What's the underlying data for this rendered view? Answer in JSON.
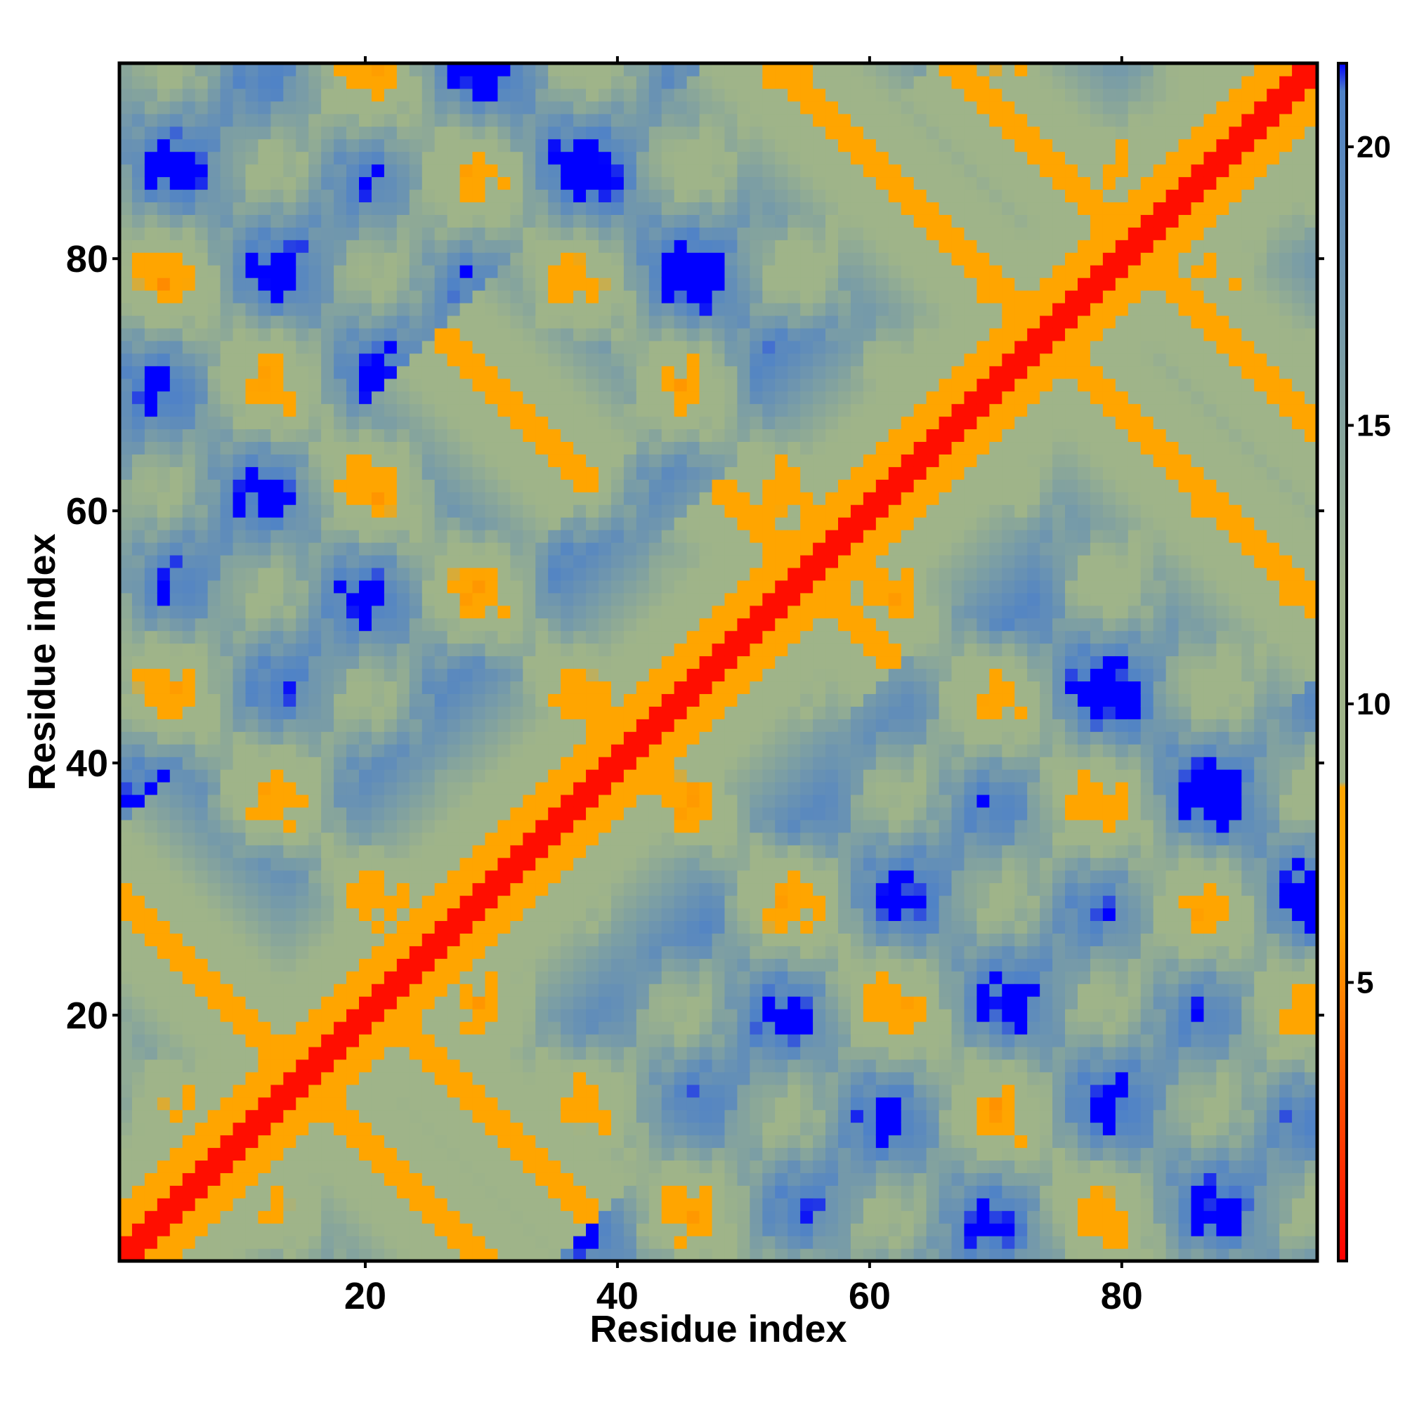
{
  "chart_data": {
    "type": "heatmap",
    "title": "",
    "xlabel": "Residue index",
    "ylabel": "Residue index",
    "n_residues": 95,
    "xlim": [
      0.5,
      95.5
    ],
    "ylim": [
      0.5,
      95.5
    ],
    "x_ticks": [
      20,
      40,
      60,
      80
    ],
    "y_ticks": [
      20,
      40,
      60,
      80
    ],
    "x_tick_labels": [
      "20",
      "40",
      "60",
      "80"
    ],
    "y_tick_labels": [
      "20",
      "40",
      "60",
      "80"
    ],
    "value_description": "pairwise residue distance; diagonal ~0, off-diagonal contacts low, far pairs saturated (>21)",
    "contact_bands": [
      {
        "type": "diagonal",
        "offset": 0
      },
      {
        "type": "anti",
        "sum": 30,
        "from": 0,
        "to": 30
      },
      {
        "type": "anti",
        "sum": 42,
        "from": 23,
        "to": 36
      },
      {
        "type": "anti",
        "sum": 110,
        "from": 50,
        "to": 60
      },
      {
        "type": "anti",
        "sum": 100,
        "from": 28,
        "to": 36
      },
      {
        "type": "anti",
        "sum": 148,
        "from": 52,
        "to": 96
      },
      {
        "type": "anti",
        "sum": 162,
        "from": 68,
        "to": 96
      }
    ],
    "colorbar": {
      "min": 0,
      "max": 21.5,
      "ticks": [
        5,
        10,
        15,
        20
      ],
      "tick_labels": [
        "5",
        "10",
        "15",
        "20"
      ],
      "stops": [
        {
          "value": 0,
          "color": "#ff0000"
        },
        {
          "value": 6,
          "color": "#ffa500"
        },
        {
          "value": 8.5,
          "color": "#ffa500"
        },
        {
          "value": 8.6,
          "color": "#9fb489"
        },
        {
          "value": 12,
          "color": "#9fb489"
        },
        {
          "value": 21,
          "color": "#4f82c7"
        },
        {
          "value": 21.5,
          "color": "#0000ff"
        }
      ]
    }
  }
}
